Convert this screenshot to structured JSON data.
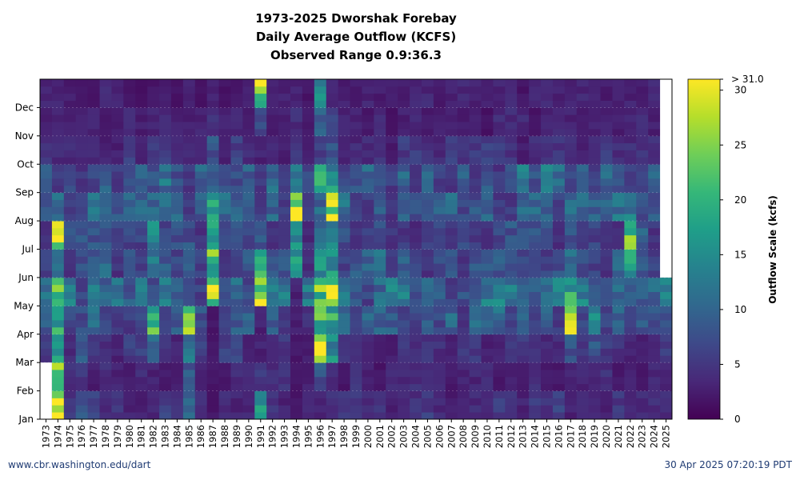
{
  "chart_data": {
    "type": "heatmap",
    "title": [
      "1973-2025 Dworshak Forebay",
      "Daily Average Outflow (KCFS)",
      "Observed Range 0.9:36.3"
    ],
    "x_labels": [
      "1973",
      "1974",
      "1975",
      "1976",
      "1977",
      "1978",
      "1979",
      "1980",
      "1981",
      "1982",
      "1983",
      "1984",
      "1985",
      "1986",
      "1987",
      "1988",
      "1989",
      "1990",
      "1991",
      "1992",
      "1993",
      "1994",
      "1995",
      "1996",
      "1997",
      "1998",
      "1999",
      "2000",
      "2001",
      "2002",
      "2003",
      "2004",
      "2005",
      "2006",
      "2007",
      "2008",
      "2009",
      "2010",
      "2011",
      "2012",
      "2013",
      "2014",
      "2015",
      "2016",
      "2017",
      "2018",
      "2019",
      "2020",
      "2021",
      "2022",
      "2023",
      "2024",
      "2025"
    ],
    "y_labels": [
      "Jan",
      "Feb",
      "Mar",
      "Apr",
      "May",
      "Jun",
      "Jul",
      "Aug",
      "Sep",
      "Oct",
      "Nov",
      "Dec"
    ],
    "months_range": [
      1,
      13
    ],
    "colorbar": {
      "label": "Outflow Scale (kcfs)",
      "range": [
        0,
        31
      ],
      "ticks": [
        0,
        5,
        10,
        15,
        20,
        25,
        30
      ],
      "top_label": "> 31.0"
    },
    "grid": true,
    "data_start": {
      "1973": "Mar"
    },
    "data_end": {
      "2025": "May"
    },
    "approx_monthly_kcfs": {
      "1974": [
        28,
        22,
        20,
        20,
        22,
        10,
        30,
        10,
        5,
        4,
        3,
        3
      ],
      "1976": [
        9,
        5,
        9,
        7,
        6,
        7,
        8,
        6,
        5,
        4,
        3,
        2
      ],
      "1982": [
        3,
        3,
        10,
        20,
        8,
        12,
        14,
        10,
        8,
        5,
        3,
        2
      ],
      "1985": [
        10,
        8,
        13,
        22,
        6,
        8,
        8,
        6,
        5,
        4,
        3,
        3
      ],
      "1987": [
        2,
        2,
        2,
        2,
        25,
        22,
        18,
        16,
        10,
        8,
        4,
        3
      ],
      "1991": [
        16,
        5,
        3,
        3,
        26,
        18,
        8,
        6,
        5,
        3,
        8,
        25
      ],
      "1994": [
        2,
        2,
        2,
        3,
        3,
        18,
        14,
        27,
        12,
        5,
        4,
        3
      ],
      "1996": [
        3,
        8,
        26,
        20,
        22,
        14,
        10,
        10,
        22,
        6,
        10,
        16
      ],
      "1997": [
        4,
        4,
        14,
        18,
        27,
        16,
        14,
        26,
        16,
        8,
        6,
        3
      ],
      "2017": [
        3,
        3,
        8,
        28,
        18,
        12,
        8,
        10,
        6,
        4,
        3,
        3
      ],
      "2019": [
        3,
        3,
        8,
        14,
        8,
        6,
        6,
        10,
        6,
        4,
        3,
        3
      ],
      "2022": [
        3,
        3,
        3,
        6,
        10,
        17,
        25,
        12,
        7,
        4,
        3,
        3
      ]
    }
  },
  "footer": {
    "left": "www.cbr.washington.edu/dart",
    "right": "30 Apr 2025 07:20:19 PDT"
  }
}
